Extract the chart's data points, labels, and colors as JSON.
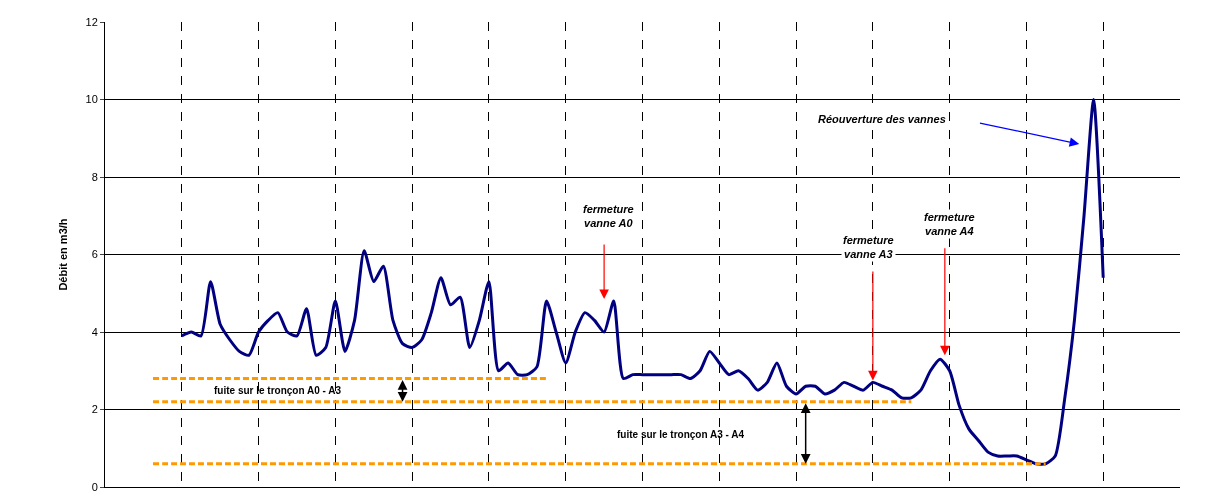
{
  "chart_data": {
    "type": "line",
    "ylabel": "Débit en m3/h",
    "categories": [
      null,
      null,
      null,
      null,
      null,
      null,
      null,
      null,
      null,
      null,
      null,
      null,
      null,
      null,
      null,
      null,
      null,
      null,
      null,
      null,
      null,
      null,
      null,
      null,
      null,
      null,
      null,
      null,
      null,
      null,
      null,
      null,
      null,
      null,
      null,
      null,
      null,
      null,
      null,
      null,
      null,
      null,
      null,
      null,
      null,
      null,
      null,
      null,
      null,
      null,
      null,
      null,
      null,
      null,
      null,
      null,
      null,
      null,
      null,
      null,
      null,
      null,
      null,
      null,
      null,
      null,
      null,
      null,
      null,
      null,
      null,
      null,
      null,
      null,
      null,
      null,
      null,
      null,
      null,
      null,
      null,
      null,
      null,
      null,
      null,
      null,
      null,
      null,
      null,
      null,
      null,
      null,
      null,
      null,
      null,
      null,
      null,
      null,
      null,
      null,
      null,
      null,
      null,
      null,
      null,
      null,
      null,
      null,
      null,
      null,
      null,
      null,
      null
    ],
    "series": [
      {
        "color": "#000080",
        "line_style": "solid",
        "values": [
          null,
          null,
          null,
          null,
          null,
          null,
          null,
          null,
          3.9,
          4.0,
          3.9,
          5.3,
          4.2,
          3.8,
          3.5,
          3.4,
          4.0,
          4.3,
          4.5,
          4.0,
          3.9,
          4.6,
          3.4,
          3.6,
          4.8,
          3.5,
          4.3,
          6.1,
          5.3,
          5.7,
          4.3,
          3.7,
          3.6,
          3.8,
          4.5,
          5.4,
          4.7,
          4.9,
          3.6,
          4.3,
          5.3,
          3.0,
          3.2,
          2.9,
          2.9,
          3.1,
          4.8,
          4.0,
          3.2,
          4.0,
          4.5,
          4.3,
          4.0,
          4.8,
          2.8,
          2.9,
          2.9,
          2.9,
          2.9,
          2.9,
          2.9,
          2.8,
          3.0,
          3.5,
          3.2,
          2.9,
          3.0,
          2.8,
          2.5,
          2.7,
          3.2,
          2.6,
          2.4,
          2.6,
          2.6,
          2.4,
          2.5,
          2.7,
          2.6,
          2.5,
          2.7,
          2.6,
          2.5,
          2.3,
          2.3,
          2.5,
          3.0,
          3.3,
          3.0,
          2.1,
          1.5,
          1.2,
          0.9,
          0.8,
          0.8,
          0.8,
          0.7,
          0.6,
          0.6,
          0.8,
          2.3,
          4.3,
          7.0,
          10.0,
          5.4,
          null,
          null,
          null,
          null,
          null,
          null,
          null,
          null
        ]
      },
      {
        "color": "#ff9900",
        "line_style": "dashed",
        "values": [
          null,
          null,
          null,
          null,
          null,
          2.8,
          2.8,
          2.8,
          2.8,
          2.8,
          2.8,
          2.8,
          2.8,
          2.8,
          2.8,
          2.8,
          2.8,
          2.8,
          2.8,
          2.8,
          2.8,
          2.8,
          2.8,
          2.8,
          2.8,
          2.8,
          2.8,
          2.8,
          2.8,
          2.8,
          2.8,
          2.8,
          2.8,
          2.8,
          2.8,
          2.8,
          2.8,
          2.8,
          2.8,
          2.8,
          2.8,
          2.8,
          2.8,
          2.8,
          2.8,
          2.8,
          2.8,
          null,
          null,
          null,
          null,
          null,
          null,
          null,
          null,
          null,
          null,
          null,
          null,
          null,
          null,
          null,
          null,
          null,
          null,
          null,
          null,
          null,
          null,
          null,
          null,
          null,
          null,
          null,
          null,
          null,
          null,
          null,
          null,
          null,
          null,
          null,
          null,
          null,
          null,
          null,
          null,
          null,
          null,
          null,
          null,
          null,
          null,
          null,
          null,
          null,
          null,
          null,
          null,
          null,
          null,
          null,
          null,
          null,
          null,
          null,
          null,
          null,
          null,
          null,
          null,
          null,
          null
        ]
      },
      {
        "color": "#ff9900",
        "line_style": "dashed",
        "values": [
          null,
          null,
          null,
          null,
          null,
          2.2,
          2.2,
          2.2,
          2.2,
          2.2,
          2.2,
          2.2,
          2.2,
          2.2,
          2.2,
          2.2,
          2.2,
          2.2,
          2.2,
          2.2,
          2.2,
          2.2,
          2.2,
          2.2,
          2.2,
          2.2,
          2.2,
          2.2,
          2.2,
          2.2,
          2.2,
          2.2,
          2.2,
          2.2,
          2.2,
          2.2,
          2.2,
          2.2,
          2.2,
          2.2,
          2.2,
          2.2,
          2.2,
          2.2,
          2.2,
          2.2,
          2.2,
          2.2,
          2.2,
          2.2,
          2.2,
          2.2,
          2.2,
          2.2,
          2.2,
          2.2,
          2.2,
          2.2,
          2.2,
          2.2,
          2.2,
          2.2,
          2.2,
          2.2,
          2.2,
          2.2,
          2.2,
          2.2,
          2.2,
          2.2,
          2.2,
          2.2,
          2.2,
          2.2,
          2.2,
          2.2,
          2.2,
          2.2,
          2.2,
          2.2,
          2.2,
          2.2,
          2.2,
          2.2,
          2.2,
          null,
          null,
          null,
          null,
          null,
          null,
          null,
          null,
          null,
          null,
          null,
          null,
          null,
          null,
          null,
          null,
          null,
          null,
          null,
          null,
          null,
          null,
          null,
          null,
          null,
          null,
          null,
          null
        ]
      },
      {
        "color": "#ff9900",
        "line_style": "dashed",
        "values": [
          null,
          null,
          null,
          null,
          null,
          0.6,
          0.6,
          0.6,
          0.6,
          0.6,
          0.6,
          0.6,
          0.6,
          0.6,
          0.6,
          0.6,
          0.6,
          0.6,
          0.6,
          0.6,
          0.6,
          0.6,
          0.6,
          0.6,
          0.6,
          0.6,
          0.6,
          0.6,
          0.6,
          0.6,
          0.6,
          0.6,
          0.6,
          0.6,
          0.6,
          0.6,
          0.6,
          0.6,
          0.6,
          0.6,
          0.6,
          0.6,
          0.6,
          0.6,
          0.6,
          0.6,
          0.6,
          0.6,
          0.6,
          0.6,
          0.6,
          0.6,
          0.6,
          0.6,
          0.6,
          0.6,
          0.6,
          0.6,
          0.6,
          0.6,
          0.6,
          0.6,
          0.6,
          0.6,
          0.6,
          0.6,
          0.6,
          0.6,
          0.6,
          0.6,
          0.6,
          0.6,
          0.6,
          0.6,
          0.6,
          0.6,
          0.6,
          0.6,
          0.6,
          0.6,
          0.6,
          0.6,
          0.6,
          0.6,
          0.6,
          0.6,
          0.6,
          0.6,
          0.6,
          0.6,
          0.6,
          0.6,
          0.6,
          0.6,
          0.6,
          0.6,
          0.6,
          0.6,
          0.6,
          null,
          null,
          null,
          null,
          null,
          null,
          null,
          null,
          null,
          null,
          null,
          null,
          null,
          null
        ]
      }
    ],
    "ylim": [
      0,
      12
    ],
    "yticks": [
      0,
      2,
      4,
      6,
      8,
      10,
      12
    ],
    "grid": true,
    "tick_labels": "y",
    "marker": "none",
    "annotations": [
      "fuite sur le tronçon A0 - A3",
      "fermeture\nvanne A0",
      "fermeture\nvanne A3",
      "fermeture\nvanne A4",
      "Réouverture des vannes",
      "fuite sur le tronçon A3 - A4"
    ]
  }
}
